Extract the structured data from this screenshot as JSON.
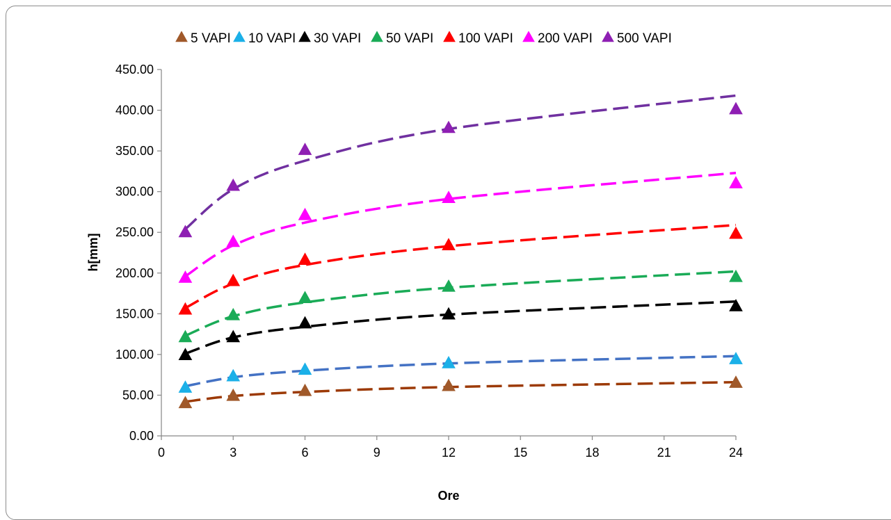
{
  "chart_data": {
    "type": "scatter",
    "xlabel": "Ore",
    "ylabel": "h[mm]",
    "xlim": [
      0,
      24
    ],
    "ylim": [
      0,
      450
    ],
    "x_ticks": [
      "0",
      "3",
      "6",
      "9",
      "12",
      "15",
      "18",
      "21",
      "24"
    ],
    "y_ticks": [
      "0.00",
      "50.00",
      "100.00",
      "150.00",
      "200.00",
      "250.00",
      "300.00",
      "350.00",
      "400.00",
      "450.00"
    ],
    "x": [
      1,
      3,
      6,
      12,
      24
    ],
    "legend_position": "top",
    "grid": false,
    "trendline_style": "dashed",
    "series": [
      {
        "name": "5 VAPI",
        "marker_color": "#A0592A",
        "trend_color": "#9C3A06",
        "values": [
          40,
          49,
          55,
          61,
          65
        ],
        "trend": [
          42,
          49,
          54,
          60,
          66
        ]
      },
      {
        "name": "10 VAPI",
        "marker_color": "#1BB0E8",
        "trend_color": "#4472C4",
        "values": [
          59,
          73,
          81,
          89,
          94
        ],
        "trend": [
          61,
          72,
          80,
          89,
          98
        ]
      },
      {
        "name": "30 VAPI",
        "marker_color": "#000000",
        "trend_color": "#000000",
        "values": [
          99,
          121,
          138,
          149,
          159
        ],
        "trend": [
          101,
          121,
          134,
          149,
          165
        ]
      },
      {
        "name": "50 VAPI",
        "marker_color": "#1AAB57",
        "trend_color": "#1AAB57",
        "values": [
          121,
          148,
          169,
          183,
          195
        ],
        "trend": [
          123,
          147,
          164,
          182,
          202
        ]
      },
      {
        "name": "100 VAPI",
        "marker_color": "#FF0000",
        "trend_color": "#FF0000",
        "values": [
          155,
          190,
          216,
          234,
          248
        ],
        "trend": [
          157,
          187,
          210,
          233,
          259
        ]
      },
      {
        "name": "200 VAPI",
        "marker_color": "#FF00FF",
        "trend_color": "#FF00FF",
        "values": [
          194,
          238,
          271,
          292,
          310
        ],
        "trend": [
          196,
          234,
          262,
          291,
          323
        ]
      },
      {
        "name": "500 VAPI",
        "marker_color": "#8E1FB3",
        "trend_color": "#7030A0",
        "values": [
          250,
          307,
          351,
          378,
          401
        ],
        "trend": [
          254,
          303,
          338,
          377,
          418
        ]
      }
    ]
  }
}
